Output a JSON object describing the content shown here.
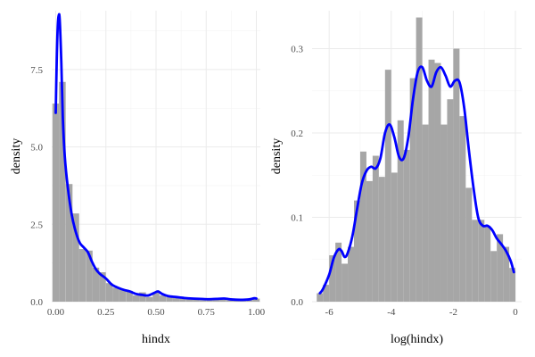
{
  "chart_data": [
    {
      "type": "histogram+density",
      "xlabel": "hindx",
      "ylabel": "density",
      "xlim": [
        -0.02,
        1.02
      ],
      "ylim": [
        0,
        9.4
      ],
      "x_ticks": [
        0.0,
        0.25,
        0.5,
        0.75,
        1.0
      ],
      "x_tick_labels": [
        "0.00",
        "0.25",
        "0.50",
        "0.75",
        "1.00"
      ],
      "y_ticks": [
        0,
        2.5,
        5.0,
        7.5
      ],
      "y_tick_labels": [
        "0.0",
        "2.5",
        "5.0",
        "7.5"
      ],
      "grid": true,
      "bar_color": "#a6a6a6",
      "line_color": "#0000ff",
      "bin_width": 0.0333,
      "bars": [
        {
          "x": 0.0,
          "y": 6.4
        },
        {
          "x": 0.033,
          "y": 7.1
        },
        {
          "x": 0.067,
          "y": 3.8
        },
        {
          "x": 0.1,
          "y": 2.85
        },
        {
          "x": 0.133,
          "y": 1.7
        },
        {
          "x": 0.167,
          "y": 1.65
        },
        {
          "x": 0.2,
          "y": 1.1
        },
        {
          "x": 0.233,
          "y": 0.95
        },
        {
          "x": 0.267,
          "y": 0.6
        },
        {
          "x": 0.3,
          "y": 0.45
        },
        {
          "x": 0.333,
          "y": 0.4
        },
        {
          "x": 0.367,
          "y": 0.35
        },
        {
          "x": 0.4,
          "y": 0.2
        },
        {
          "x": 0.433,
          "y": 0.3
        },
        {
          "x": 0.467,
          "y": 0.15
        },
        {
          "x": 0.5,
          "y": 0.3
        },
        {
          "x": 0.533,
          "y": 0.2
        },
        {
          "x": 0.567,
          "y": 0.15
        },
        {
          "x": 0.6,
          "y": 0.15
        },
        {
          "x": 0.633,
          "y": 0.1
        },
        {
          "x": 0.667,
          "y": 0.1
        },
        {
          "x": 0.7,
          "y": 0.1
        },
        {
          "x": 0.733,
          "y": 0.05
        },
        {
          "x": 0.767,
          "y": 0.1
        },
        {
          "x": 0.8,
          "y": 0.08
        },
        {
          "x": 0.833,
          "y": 0.1
        },
        {
          "x": 0.867,
          "y": 0.05
        },
        {
          "x": 0.9,
          "y": 0.05
        },
        {
          "x": 0.933,
          "y": 0.05
        },
        {
          "x": 0.967,
          "y": 0.05
        },
        {
          "x": 1.0,
          "y": 0.1
        }
      ],
      "density": [
        [
          0.0,
          6.1
        ],
        [
          0.005,
          7.8
        ],
        [
          0.01,
          8.9
        ],
        [
          0.015,
          9.25
        ],
        [
          0.02,
          9.1
        ],
        [
          0.028,
          7.7
        ],
        [
          0.035,
          6.0
        ],
        [
          0.045,
          4.7
        ],
        [
          0.06,
          3.7
        ],
        [
          0.08,
          2.8
        ],
        [
          0.1,
          2.25
        ],
        [
          0.12,
          1.9
        ],
        [
          0.14,
          1.75
        ],
        [
          0.16,
          1.6
        ],
        [
          0.18,
          1.3
        ],
        [
          0.2,
          1.05
        ],
        [
          0.22,
          0.9
        ],
        [
          0.25,
          0.75
        ],
        [
          0.28,
          0.55
        ],
        [
          0.31,
          0.45
        ],
        [
          0.34,
          0.38
        ],
        [
          0.37,
          0.33
        ],
        [
          0.4,
          0.25
        ],
        [
          0.43,
          0.22
        ],
        [
          0.46,
          0.2
        ],
        [
          0.49,
          0.28
        ],
        [
          0.51,
          0.33
        ],
        [
          0.53,
          0.25
        ],
        [
          0.56,
          0.18
        ],
        [
          0.6,
          0.15
        ],
        [
          0.64,
          0.12
        ],
        [
          0.68,
          0.1
        ],
        [
          0.72,
          0.09
        ],
        [
          0.76,
          0.08
        ],
        [
          0.8,
          0.09
        ],
        [
          0.84,
          0.1
        ],
        [
          0.88,
          0.07
        ],
        [
          0.92,
          0.06
        ],
        [
          0.96,
          0.07
        ],
        [
          0.99,
          0.11
        ],
        [
          1.0,
          0.1
        ]
      ]
    },
    {
      "type": "histogram+density",
      "xlabel": "log(hindx)",
      "ylabel": "density",
      "xlim": [
        -6.55,
        0.2
      ],
      "ylim": [
        0,
        0.345
      ],
      "x_ticks": [
        -6,
        -4,
        -2,
        0
      ],
      "x_tick_labels": [
        "-6",
        "-4",
        "-2",
        "0"
      ],
      "y_ticks": [
        0.0,
        0.1,
        0.2,
        0.3
      ],
      "y_tick_labels": [
        "0.0",
        "0.1",
        "0.2",
        "0.3"
      ],
      "grid": true,
      "bar_color": "#a6a6a6",
      "line_color": "#0000ff",
      "bin_width": 0.2,
      "bars": [
        {
          "x": -6.3,
          "y": 0.01
        },
        {
          "x": -6.1,
          "y": 0.02
        },
        {
          "x": -5.9,
          "y": 0.055
        },
        {
          "x": -5.7,
          "y": 0.07
        },
        {
          "x": -5.5,
          "y": 0.045
        },
        {
          "x": -5.3,
          "y": 0.065
        },
        {
          "x": -5.1,
          "y": 0.12
        },
        {
          "x": -4.9,
          "y": 0.178
        },
        {
          "x": -4.7,
          "y": 0.143
        },
        {
          "x": -4.5,
          "y": 0.173
        },
        {
          "x": -4.3,
          "y": 0.148
        },
        {
          "x": -4.1,
          "y": 0.275
        },
        {
          "x": -3.9,
          "y": 0.153
        },
        {
          "x": -3.7,
          "y": 0.215
        },
        {
          "x": -3.5,
          "y": 0.18
        },
        {
          "x": -3.3,
          "y": 0.265
        },
        {
          "x": -3.1,
          "y": 0.337
        },
        {
          "x": -2.9,
          "y": 0.21
        },
        {
          "x": -2.7,
          "y": 0.287
        },
        {
          "x": -2.5,
          "y": 0.283
        },
        {
          "x": -2.3,
          "y": 0.21
        },
        {
          "x": -2.1,
          "y": 0.24
        },
        {
          "x": -1.9,
          "y": 0.3
        },
        {
          "x": -1.7,
          "y": 0.22
        },
        {
          "x": -1.5,
          "y": 0.135
        },
        {
          "x": -1.3,
          "y": 0.097
        },
        {
          "x": -1.1,
          "y": 0.097
        },
        {
          "x": -0.9,
          "y": 0.09
        },
        {
          "x": -0.7,
          "y": 0.06
        },
        {
          "x": -0.5,
          "y": 0.08
        },
        {
          "x": -0.3,
          "y": 0.065
        },
        {
          "x": -0.1,
          "y": 0.04
        }
      ],
      "density": [
        [
          -6.3,
          0.01
        ],
        [
          -6.2,
          0.015
        ],
        [
          -6.0,
          0.032
        ],
        [
          -5.85,
          0.052
        ],
        [
          -5.7,
          0.062
        ],
        [
          -5.6,
          0.06
        ],
        [
          -5.5,
          0.053
        ],
        [
          -5.4,
          0.058
        ],
        [
          -5.25,
          0.078
        ],
        [
          -5.1,
          0.11
        ],
        [
          -4.95,
          0.14
        ],
        [
          -4.8,
          0.155
        ],
        [
          -4.65,
          0.16
        ],
        [
          -4.5,
          0.158
        ],
        [
          -4.35,
          0.17
        ],
        [
          -4.2,
          0.2
        ],
        [
          -4.05,
          0.21
        ],
        [
          -3.9,
          0.195
        ],
        [
          -3.75,
          0.172
        ],
        [
          -3.6,
          0.17
        ],
        [
          -3.45,
          0.195
        ],
        [
          -3.3,
          0.24
        ],
        [
          -3.15,
          0.272
        ],
        [
          -3.0,
          0.278
        ],
        [
          -2.85,
          0.262
        ],
        [
          -2.7,
          0.255
        ],
        [
          -2.55,
          0.272
        ],
        [
          -2.4,
          0.278
        ],
        [
          -2.25,
          0.268
        ],
        [
          -2.1,
          0.255
        ],
        [
          -1.95,
          0.262
        ],
        [
          -1.8,
          0.26
        ],
        [
          -1.65,
          0.23
        ],
        [
          -1.5,
          0.18
        ],
        [
          -1.35,
          0.135
        ],
        [
          -1.2,
          0.1
        ],
        [
          -1.05,
          0.09
        ],
        [
          -0.9,
          0.09
        ],
        [
          -0.75,
          0.085
        ],
        [
          -0.6,
          0.075
        ],
        [
          -0.45,
          0.068
        ],
        [
          -0.3,
          0.06
        ],
        [
          -0.15,
          0.048
        ],
        [
          -0.05,
          0.035
        ]
      ]
    }
  ]
}
